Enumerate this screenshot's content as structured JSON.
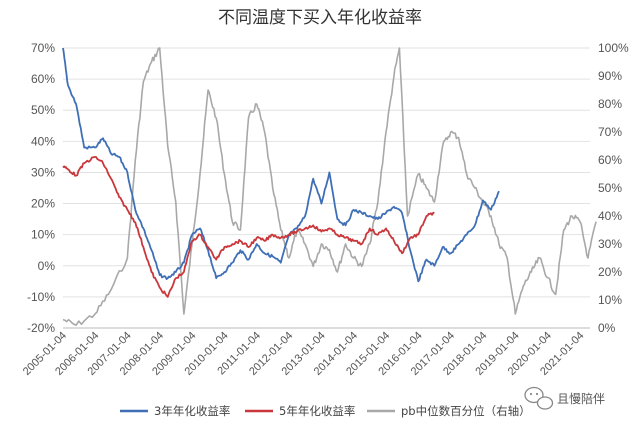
{
  "chart_data": {
    "type": "line",
    "title": "不同温度下买入年化收益率",
    "y_left": {
      "ticks": [
        "70%",
        "60%",
        "50%",
        "40%",
        "30%",
        "20%",
        "10%",
        "0%",
        "-10%",
        "-20%"
      ],
      "ylim": [
        -0.2,
        0.7
      ]
    },
    "y_right": {
      "ticks": [
        "100%",
        "90%",
        "80%",
        "70%",
        "60%",
        "50%",
        "40%",
        "30%",
        "20%",
        "10%",
        "0%"
      ],
      "ylim": [
        0,
        1.0
      ]
    },
    "x_ticks": [
      "2005-01-04",
      "2006-01-04",
      "2007-01-04",
      "2008-01-04",
      "2009-01-04",
      "2010-01-04",
      "2011-01-04",
      "2012-01-04",
      "2013-01-04",
      "2014-01-04",
      "2015-01-04",
      "2016-01-04",
      "2017-01-04",
      "2018-01-04",
      "2019-01-04",
      "2020-01-04",
      "2021-01-04"
    ],
    "grid": true,
    "legend_position": "bottom",
    "series": [
      {
        "name": "3年年化收益率",
        "axis": "left",
        "color": "#3f6fb6",
        "x": [
          "2005-01-04",
          "2005-03-01",
          "2005-06-01",
          "2005-09-01",
          "2006-01-01",
          "2006-04-01",
          "2006-07-01",
          "2006-10-01",
          "2007-01-01",
          "2007-04-01",
          "2007-07-01",
          "2007-10-01",
          "2008-01-01",
          "2008-04-01",
          "2008-07-01",
          "2008-10-01",
          "2009-01-01",
          "2009-04-01",
          "2009-07-01",
          "2009-10-01",
          "2010-01-01",
          "2010-04-01",
          "2010-07-01",
          "2010-10-01",
          "2011-01-01",
          "2011-04-01",
          "2011-07-01",
          "2011-10-01",
          "2012-01-01",
          "2012-04-01",
          "2012-07-01",
          "2012-10-01",
          "2013-01-01",
          "2013-04-01",
          "2013-07-01",
          "2013-10-01",
          "2014-01-01",
          "2014-04-01",
          "2014-07-01",
          "2014-10-01",
          "2015-01-01",
          "2015-04-01",
          "2015-07-01",
          "2015-10-01",
          "2016-01-01",
          "2016-04-01",
          "2016-07-01",
          "2016-10-01",
          "2017-01-01",
          "2017-04-01",
          "2017-07-01",
          "2017-10-01",
          "2018-01-01",
          "2018-04-01",
          "2018-07-01"
        ],
        "values": [
          0.7,
          0.58,
          0.52,
          0.38,
          0.38,
          0.41,
          0.36,
          0.35,
          0.3,
          0.18,
          0.12,
          0.05,
          -0.03,
          -0.04,
          -0.02,
          0.01,
          0.1,
          0.12,
          0.05,
          -0.04,
          -0.02,
          0.01,
          0.05,
          0.02,
          0.07,
          0.04,
          0.03,
          0.01,
          0.1,
          0.12,
          0.16,
          0.28,
          0.2,
          0.3,
          0.15,
          0.13,
          0.18,
          0.17,
          0.16,
          0.15,
          0.17,
          0.19,
          0.17,
          0.05,
          -0.05,
          0.02,
          0.0,
          0.06,
          0.04,
          0.07,
          0.1,
          0.13,
          0.21,
          0.18,
          0.24
        ]
      },
      {
        "name": "5年年化收益率",
        "axis": "left",
        "color": "#c9373a",
        "x": [
          "2005-01-04",
          "2005-03-01",
          "2005-06-01",
          "2005-09-01",
          "2006-01-01",
          "2006-04-01",
          "2006-07-01",
          "2006-10-01",
          "2007-01-01",
          "2007-04-01",
          "2007-07-01",
          "2007-10-01",
          "2008-01-01",
          "2008-04-01",
          "2008-07-01",
          "2008-10-01",
          "2009-01-01",
          "2009-04-01",
          "2009-07-01",
          "2009-10-01",
          "2010-01-01",
          "2010-04-01",
          "2010-07-01",
          "2010-10-01",
          "2011-01-01",
          "2011-04-01",
          "2011-07-01",
          "2011-10-01",
          "2012-01-01",
          "2012-04-01",
          "2012-07-01",
          "2012-10-01",
          "2013-01-01",
          "2013-04-01",
          "2013-07-01",
          "2013-10-01",
          "2014-01-01",
          "2014-04-01",
          "2014-07-01",
          "2014-10-01",
          "2015-01-01",
          "2015-04-01",
          "2015-07-01",
          "2015-10-01",
          "2016-01-01",
          "2016-04-01",
          "2016-07-01"
        ],
        "values": [
          0.32,
          0.31,
          0.29,
          0.33,
          0.35,
          0.33,
          0.28,
          0.22,
          0.18,
          0.14,
          0.06,
          -0.02,
          -0.07,
          -0.1,
          -0.04,
          -0.02,
          0.08,
          0.1,
          0.06,
          0.02,
          0.06,
          0.07,
          0.08,
          0.06,
          0.09,
          0.08,
          0.1,
          0.09,
          0.1,
          0.11,
          0.12,
          0.13,
          0.11,
          0.12,
          0.1,
          0.09,
          0.08,
          0.07,
          0.12,
          0.1,
          0.12,
          0.08,
          0.04,
          0.09,
          0.1,
          0.16,
          0.17
        ]
      },
      {
        "name": "pb中位数百分位（右轴）",
        "axis": "right",
        "color": "#a8a8a8",
        "x": [
          "2005-01-04",
          "2005-06-01",
          "2006-01-01",
          "2006-06-01",
          "2007-01-01",
          "2007-04-01",
          "2007-07-01",
          "2007-10-01",
          "2008-01-01",
          "2008-04-01",
          "2008-07-01",
          "2008-10-01",
          "2009-01-01",
          "2009-04-01",
          "2009-07-01",
          "2009-10-01",
          "2010-01-01",
          "2010-04-01",
          "2010-07-01",
          "2010-10-01",
          "2011-01-01",
          "2011-04-01",
          "2011-07-01",
          "2011-10-01",
          "2012-01-01",
          "2012-04-01",
          "2012-07-01",
          "2012-10-01",
          "2013-01-01",
          "2013-04-01",
          "2013-07-01",
          "2013-10-01",
          "2014-01-01",
          "2014-04-01",
          "2014-07-01",
          "2014-10-01",
          "2015-01-01",
          "2015-04-01",
          "2015-06-01",
          "2015-09-01",
          "2016-01-01",
          "2016-04-01",
          "2016-07-01",
          "2016-10-01",
          "2017-01-01",
          "2017-04-01",
          "2017-07-01",
          "2017-10-01",
          "2018-01-01",
          "2018-04-01",
          "2018-07-01",
          "2018-10-01",
          "2019-01-01",
          "2019-04-01",
          "2019-07-01",
          "2019-10-01",
          "2020-01-01",
          "2020-04-01",
          "2020-07-01",
          "2020-10-01",
          "2021-01-01",
          "2021-04-01",
          "2021-07-01"
        ],
        "values": [
          0.03,
          0.01,
          0.05,
          0.12,
          0.25,
          0.6,
          0.88,
          0.95,
          1.0,
          0.65,
          0.45,
          0.05,
          0.3,
          0.55,
          0.85,
          0.75,
          0.55,
          0.38,
          0.35,
          0.75,
          0.8,
          0.7,
          0.5,
          0.35,
          0.25,
          0.35,
          0.3,
          0.22,
          0.3,
          0.28,
          0.2,
          0.3,
          0.25,
          0.22,
          0.3,
          0.45,
          0.7,
          0.9,
          1.0,
          0.4,
          0.55,
          0.5,
          0.45,
          0.65,
          0.7,
          0.68,
          0.55,
          0.5,
          0.45,
          0.4,
          0.3,
          0.25,
          0.05,
          0.15,
          0.2,
          0.25,
          0.18,
          0.12,
          0.35,
          0.4,
          0.38,
          0.25,
          0.38
        ]
      }
    ]
  },
  "legend": [
    {
      "label": "3年年化收益率",
      "color": "#3f6fb6"
    },
    {
      "label": "5年年化收益率",
      "color": "#c9373a"
    },
    {
      "label": "pb中位数百分位（右轴）",
      "color": "#a8a8a8"
    }
  ],
  "watermark": {
    "text": "且慢陪伴",
    "icon": "wechat-icon"
  }
}
